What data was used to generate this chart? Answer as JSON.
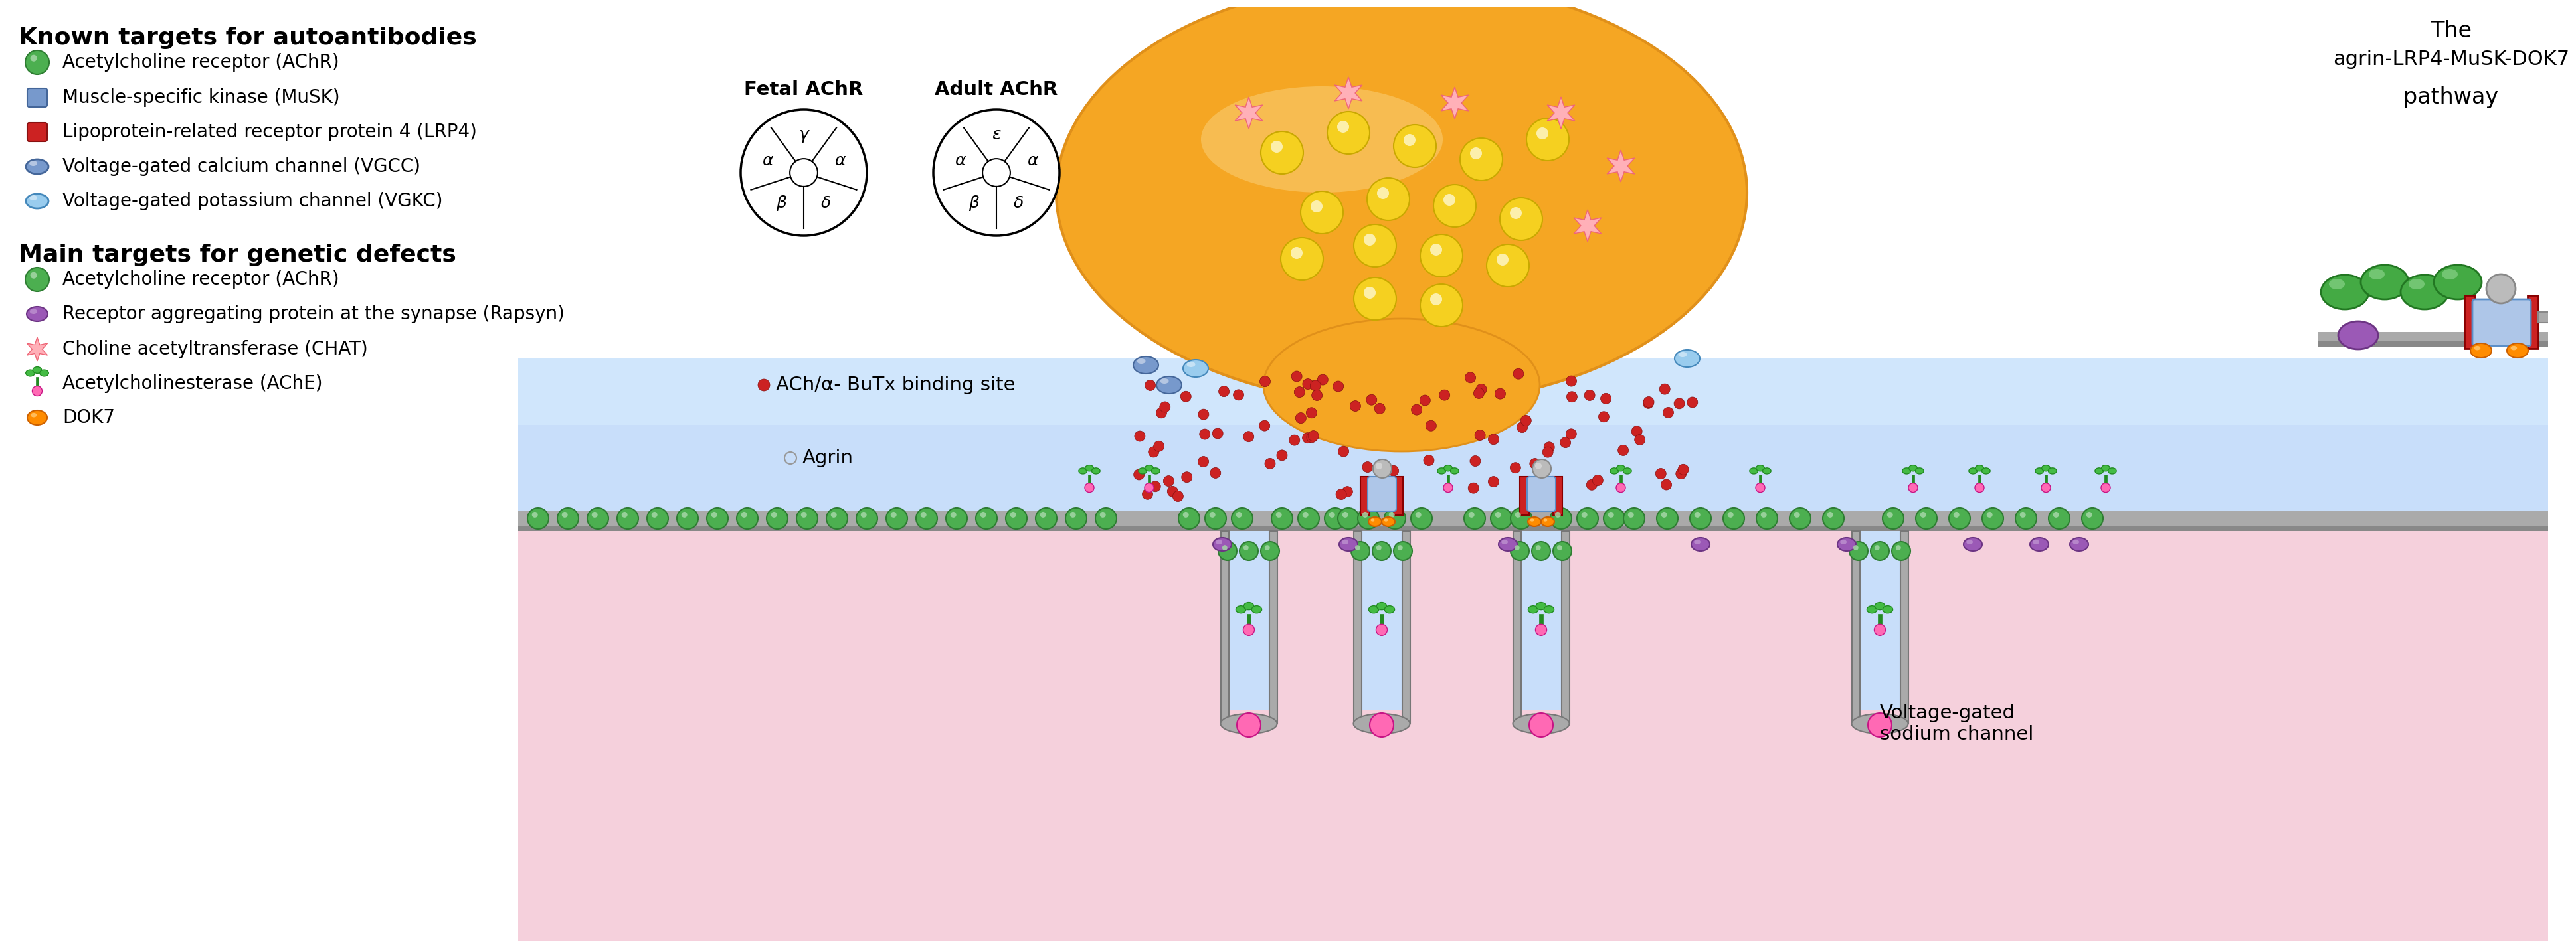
{
  "bg_color": "#ffffff",
  "nerve_color": "#F5A623",
  "nerve_edge_color": "#E0901A",
  "vesicle_color": "#F5D020",
  "vesicle_edge": "#C8A800",
  "synaptic_bg": "#C8DEFA",
  "muscle_bg": "#F5D0DC",
  "membrane_color": "#999999",
  "fold_color": "#AAAAAA",
  "fold_edge": "#777777",
  "fold_interior": "#C8DEFA",
  "green_achr": "#4CAF50",
  "green_achr_edge": "#2E7D32",
  "green_achr_hi": "#A5D6A7",
  "pink_rapsyn": "#D070A0",
  "pink_rapsyn_edge": "#A04070",
  "hot_pink": "#FF69B4",
  "hot_pink_edge": "#C71585",
  "red_dot": "#CC2222",
  "star_color": "#FFB0B8",
  "star_edge": "#EE6677",
  "ache_dark": "#228B22",
  "ache_light": "#44BB44",
  "orange_dok7": "#FF8C00",
  "orange_dok7_edge": "#CC6000",
  "blue_vgcc": "#7799CC",
  "blue_vgcc_edge": "#446699",
  "light_blue_vgkc": "#99CCEE",
  "light_blue_vgkc_edge": "#4488BB",
  "blue_musk": "#7799CC",
  "musk_edge": "#446699",
  "red_lrp4": "#CC2222",
  "lrp4_edge": "#881111",
  "sodium_ch_blue": "#AEC6E8",
  "sodium_ch_blue_edge": "#5B8FC9",
  "sodium_ch_red": "#CC2222",
  "gray_agrin_dot_color": "#999999",
  "purple_rapsyn_color": "#9B59B6",
  "purple_rapsyn_edge": "#6C3483",
  "pathway_green": "#44AA44",
  "pathway_green_edge": "#227722",
  "pathway_gray": "#BBBBBB",
  "pathway_gray_edge": "#888888",
  "legend_title1": "Known targets for autoantibodies",
  "legend_title2": "Main targets for genetic defects",
  "legend_items1": [
    "Acetylcholine receptor (AChR)",
    "Muscle-specific kinase (MuSK)",
    "Lipoprotein-related receptor protein 4 (LRP4)",
    "Voltage-gated calcium channel (VGCC)",
    "Voltage-gated potassium channel (VGKC)"
  ],
  "legend_items2": [
    "Acetylcholine receptor (AChR)",
    "Receptor aggregating protein at the synapse (Rapsyn)",
    "Choline acetyltransferase (CHAT)",
    "Acetylcholinesterase (AChE)",
    "DOK7"
  ],
  "fetal_subunits": [
    "α",
    "γ",
    "α",
    "δ",
    "β"
  ],
  "adult_subunits": [
    "α",
    "ε",
    "α",
    "δ",
    "β"
  ],
  "fetal_title": "Fetal AChR",
  "adult_title": "Adult AChR",
  "pathway_title_line1": "The",
  "pathway_title_line2": "agrin-LRP4-MuSK-DOK7",
  "pathway_title_line3": "pathway",
  "ach_label": "ACh/α- BuTx binding site",
  "agrin_label": "Agrin",
  "vgsodium_label": "Voltage-gated\nsodium channel"
}
